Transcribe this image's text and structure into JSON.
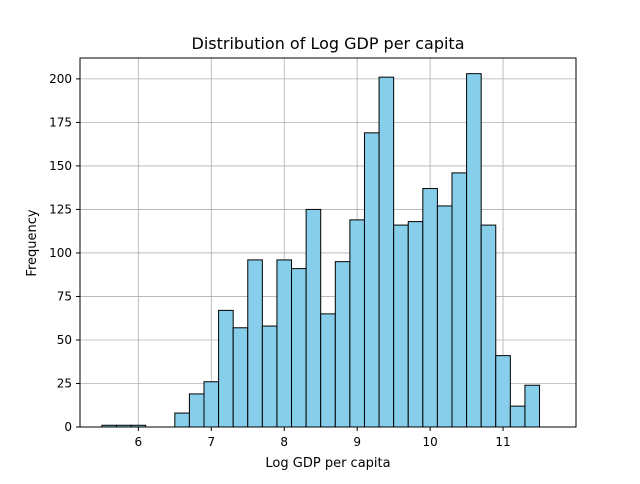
{
  "chart_data": {
    "type": "bar",
    "title": "Distribution of Log GDP per capita",
    "xlabel": "Log GDP per capita",
    "ylabel": "Frequency",
    "bin_edges": [
      5.5,
      5.7,
      5.9,
      6.1,
      6.3,
      6.5,
      6.7,
      6.9,
      7.1,
      7.3,
      7.5,
      7.7,
      7.9,
      8.1,
      8.3,
      8.5,
      8.7,
      8.9,
      9.1,
      9.3,
      9.5,
      9.7,
      9.9,
      10.1,
      10.3,
      10.5,
      10.7,
      10.9,
      11.1,
      11.3,
      11.5,
      11.7
    ],
    "values": [
      1,
      1,
      1,
      0,
      0,
      8,
      19,
      26,
      67,
      57,
      96,
      58,
      96,
      91,
      125,
      65,
      95,
      119,
      169,
      201,
      116,
      118,
      137,
      127,
      146,
      203,
      116,
      41,
      12,
      24,
      0
    ],
    "xlim": [
      5.2,
      12.0
    ],
    "ylim": [
      0,
      212
    ],
    "xticks": [
      6,
      7,
      8,
      9,
      10,
      11
    ],
    "yticks": [
      0,
      25,
      50,
      75,
      100,
      125,
      150,
      175,
      200
    ],
    "grid": true,
    "colors": {
      "bar_fill": "#87ceeb",
      "bar_edge": "#000000",
      "grid": "#b0b0b0"
    }
  }
}
